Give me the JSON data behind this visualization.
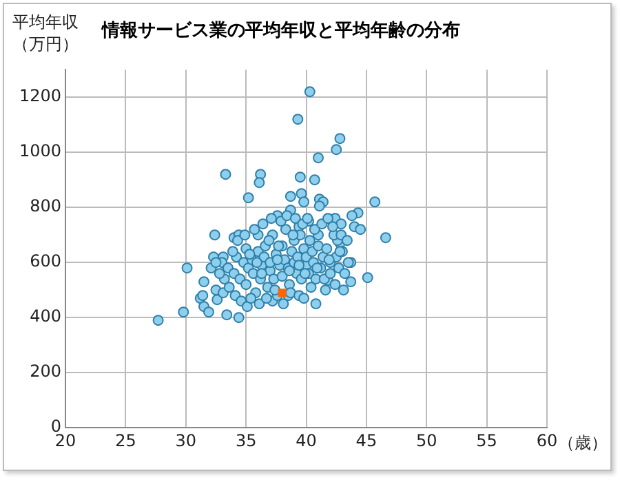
{
  "chart_data": {
    "type": "scatter",
    "title": "情報サービス業の平均年収と平均年齢の分布",
    "xlabel": "（歳）",
    "ylabel": "平均年収（万円）",
    "xlim": [
      20,
      60
    ],
    "xticks": [
      20,
      25,
      30,
      35,
      40,
      45,
      50,
      55,
      60
    ],
    "ylim": [
      0,
      1300
    ],
    "yticks": [
      0,
      200,
      400,
      600,
      800,
      1000,
      1200
    ],
    "grid": true,
    "legend": false,
    "series": [
      {
        "color": "#8ecfee",
        "marker": "circle",
        "x": [
          40.3,
          39.3,
          42.8,
          42.5,
          41.0,
          33.3,
          36.2,
          36.1,
          39.5,
          40.7,
          35.2,
          38.7,
          39.6,
          39.8,
          41.1,
          41.4,
          41.1,
          38.7,
          37.6,
          32.4,
          34.0,
          34.4,
          45.7,
          44.3,
          43.8,
          44.0,
          44.5,
          46.6,
          42.4,
          42.9,
          40.2,
          39.4,
          27.7,
          29.8,
          30.1,
          31.5,
          31.2,
          31.4,
          31.5,
          31.9,
          33.4,
          34.4,
          32.6,
          32.5,
          33.1,
          32.3,
          33.1,
          32.1,
          37.2,
          38.5,
          40.8,
          45.1,
          43.7,
          41.8,
          43.7,
          42.8,
          42.6,
          33,
          33.5,
          34,
          34.2,
          34.5,
          34.8,
          35,
          35,
          35.2,
          35.5,
          35.6,
          35.8,
          36,
          36,
          36.2,
          36.3,
          36.5,
          36.6,
          36.8,
          37,
          37,
          37.2,
          37.3,
          37.5,
          37.6,
          37.8,
          38,
          38,
          38.2,
          38.3,
          38.5,
          38.6,
          38.8,
          39,
          39,
          39.2,
          39.3,
          39.5,
          39.6,
          39.8,
          40,
          40,
          40.2,
          40.3,
          40.5,
          40.6,
          40.8,
          41,
          41,
          41.2,
          41.4,
          41.5,
          41.7,
          42,
          42,
          42.3,
          42.5,
          42.7,
          43,
          43.2,
          43.5,
          36.1,
          36.7,
          37.4,
          38.7,
          39.4,
          33.2,
          33.6,
          34.1,
          34.6,
          35.1,
          35.4,
          32.8,
          32.5,
          33.9,
          34.3,
          34.9,
          35.7,
          36.4,
          37.1,
          37.9,
          38.4,
          39.1,
          39.7,
          40.1,
          40.7,
          41.3,
          41.8,
          42.2,
          42.9,
          43.4,
          36.9,
          37.7,
          38.9,
          39.9,
          40.4,
          41.6,
          42.4,
          43.1,
          38.1,
          39.8,
          35.3,
          35.9,
          36.3,
          37.6,
          38.6,
          39.4,
          40.9,
          41.9,
          42.8
        ],
        "values": [
          1220,
          1120,
          1050,
          1010,
          980,
          920,
          920,
          890,
          910,
          900,
          835,
          840,
          850,
          820,
          830,
          820,
          805,
          790,
          770,
          700,
          690,
          700,
          820,
          780,
          770,
          730,
          720,
          690,
          760,
          740,
          750,
          730,
          390,
          420,
          580,
          530,
          470,
          480,
          440,
          420,
          410,
          400,
          465,
          500,
          490,
          620,
          620,
          580,
          460,
          480,
          450,
          545,
          530,
          535,
          600,
          670,
          680,
          600,
          580,
          560,
          620,
          540,
          600,
          650,
          520,
          580,
          610,
          560,
          490,
          640,
          700,
          540,
          590,
          620,
          660,
          510,
          570,
          600,
          700,
          540,
          630,
          480,
          590,
          660,
          550,
          610,
          720,
          580,
          520,
          640,
          600,
          680,
          560,
          620,
          700,
          540,
          650,
          590,
          620,
          560,
          680,
          640,
          600,
          540,
          660,
          700,
          580,
          620,
          540,
          650,
          600,
          560,
          700,
          620,
          580,
          640,
          560,
          600,
          450,
          470,
          500,
          490,
          480,
          540,
          510,
          480,
          460,
          440,
          470,
          560,
          600,
          640,
          680,
          700,
          720,
          740,
          760,
          750,
          770,
          760,
          740,
          760,
          720,
          740,
          760,
          730,
          700,
          680,
          680,
          660,
          700,
          560,
          510,
          500,
          520,
          500,
          450,
          470,
          630,
          600,
          560,
          610,
          570,
          590,
          580,
          610,
          640
        ]
      },
      {
        "color": "#ff6600",
        "marker": "square",
        "x": [
          38.0
        ],
        "values": [
          490
        ]
      }
    ]
  }
}
